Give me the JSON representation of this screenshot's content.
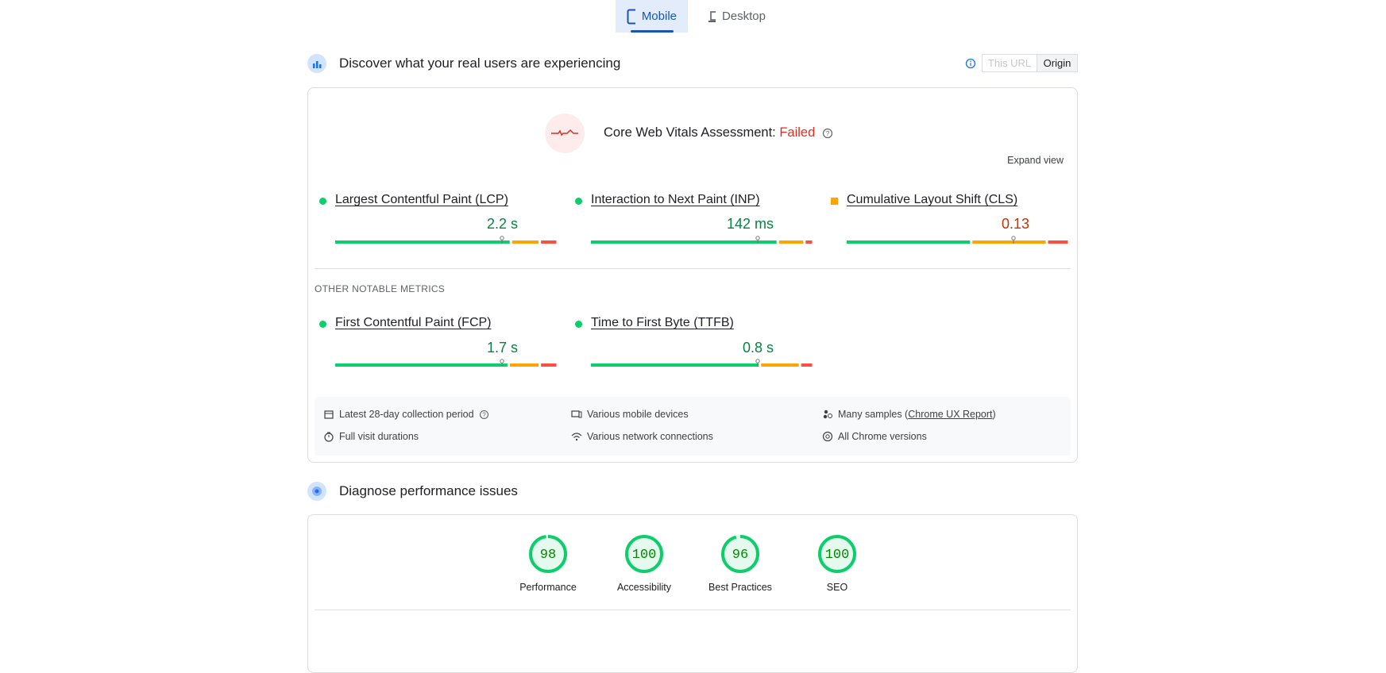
{
  "tabs": [
    {
      "label": "Mobile",
      "selected": true
    },
    {
      "label": "Desktop",
      "selected": false
    }
  ],
  "field": {
    "title": "Discover what your real users are experiencing",
    "toggle": [
      "This URL",
      "Origin"
    ],
    "assessment": {
      "label": "Core Web Vitals Assessment:",
      "result": "Failed"
    },
    "expand": "Expand view",
    "core_metrics": [
      {
        "name": "Largest Contentful Paint (LCP)",
        "value": "2.2 s",
        "rating": "good",
        "distribution": [
          79,
          13,
          8
        ]
      },
      {
        "name": "Interaction to Next Paint (INP)",
        "value": "142 ms",
        "rating": "good",
        "distribution": [
          84,
          12,
          4
        ]
      },
      {
        "name": "Cumulative Layout Shift (CLS)",
        "value": "0.13",
        "rating": "needs-improvement",
        "distribution": [
          56,
          34,
          10
        ]
      }
    ],
    "other_heading": "OTHER NOTABLE METRICS",
    "other_metrics": [
      {
        "name": "First Contentful Paint (FCP)",
        "value": "1.7 s",
        "rating": "good",
        "distribution": [
          78,
          14,
          8
        ]
      },
      {
        "name": "Time to First Byte (TTFB)",
        "value": "0.8 s",
        "rating": "good",
        "distribution": [
          76,
          18,
          6
        ]
      }
    ],
    "details": [
      {
        "text": "Latest 28-day collection period"
      },
      {
        "text": "Full visit durations"
      },
      {
        "text": "Various mobile devices"
      },
      {
        "text": "Various network connections"
      },
      {
        "text": "Many samples (",
        "link": "Chrome UX Report",
        "after": ")"
      },
      {
        "text": "All Chrome versions"
      }
    ]
  },
  "lab": {
    "title": "Diagnose performance issues",
    "scores": [
      {
        "label": "Performance",
        "score": 98
      },
      {
        "label": "Accessibility",
        "score": 100
      },
      {
        "label": "Best Practices",
        "score": 96
      },
      {
        "label": "SEO",
        "score": 100
      }
    ]
  }
}
